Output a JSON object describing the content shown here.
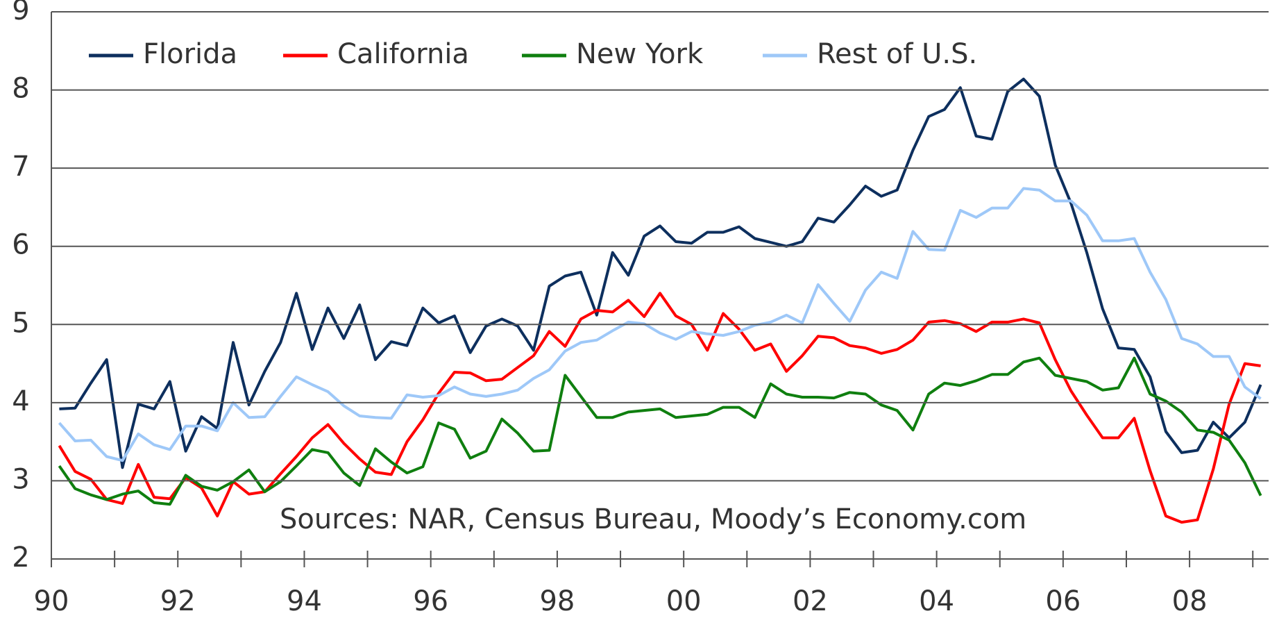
{
  "chart_data": {
    "type": "line",
    "annotation": "Sources: NAR, Census Bureau, Moody’s Economy.com",
    "legend": "top-left",
    "grid": true,
    "x": [
      1990.125,
      1990.375,
      1990.625,
      1990.875,
      1991.125,
      1991.375,
      1991.625,
      1991.875,
      1992.125,
      1992.375,
      1992.625,
      1992.875,
      1993.125,
      1993.375,
      1993.625,
      1993.875,
      1994.125,
      1994.375,
      1994.625,
      1994.875,
      1995.125,
      1995.375,
      1995.625,
      1995.875,
      1996.125,
      1996.375,
      1996.625,
      1996.875,
      1997.125,
      1997.375,
      1997.625,
      1997.875,
      1998.125,
      1998.375,
      1998.625,
      1998.875,
      1999.125,
      1999.375,
      1999.625,
      1999.875,
      2000.125,
      2000.375,
      2000.625,
      2000.875,
      2001.125,
      2001.375,
      2001.625,
      2001.875,
      2002.125,
      2002.375,
      2002.625,
      2002.875,
      2003.125,
      2003.375,
      2003.625,
      2003.875,
      2004.125,
      2004.375,
      2004.625,
      2004.875,
      2005.125,
      2005.375,
      2005.625,
      2005.875,
      2006.125,
      2006.375,
      2006.625,
      2006.875,
      2007.125,
      2007.375,
      2007.625,
      2007.875,
      2008.125,
      2008.375,
      2008.625,
      2008.875,
      2009.125
    ],
    "series": [
      {
        "name": "Florida",
        "color": "#0d2f5e",
        "values": [
          3.92,
          3.93,
          4.25,
          4.55,
          3.17,
          3.98,
          3.92,
          4.27,
          3.38,
          3.82,
          3.67,
          4.77,
          3.97,
          4.4,
          4.77,
          5.4,
          4.68,
          5.21,
          4.82,
          5.25,
          4.55,
          4.78,
          4.73,
          5.21,
          5.02,
          5.11,
          4.64,
          4.98,
          5.07,
          4.98,
          4.67,
          5.49,
          5.62,
          5.67,
          5.12,
          5.92,
          5.63,
          6.13,
          6.26,
          6.06,
          6.04,
          6.18,
          6.18,
          6.25,
          6.1,
          6.05,
          6.0,
          6.06,
          6.36,
          6.31,
          6.53,
          6.77,
          6.64,
          6.72,
          7.23,
          7.66,
          7.75,
          8.03,
          7.41,
          7.37,
          7.98,
          8.14,
          7.92,
          7.04,
          6.55,
          5.92,
          5.2,
          4.7,
          4.68,
          4.33,
          3.63,
          3.36,
          3.39,
          3.75,
          3.55,
          3.75,
          4.23
        ]
      },
      {
        "name": "California",
        "color": "#ff0000",
        "values": [
          3.45,
          3.12,
          3.02,
          2.76,
          2.71,
          3.21,
          2.79,
          2.77,
          3.04,
          2.91,
          2.55,
          2.99,
          2.83,
          2.86,
          3.09,
          3.31,
          3.55,
          3.72,
          3.48,
          3.28,
          3.11,
          3.08,
          3.5,
          3.78,
          4.12,
          4.39,
          4.38,
          4.28,
          4.3,
          4.45,
          4.6,
          4.91,
          4.72,
          5.07,
          5.18,
          5.16,
          5.31,
          5.1,
          5.4,
          5.11,
          5.0,
          4.67,
          5.14,
          4.94,
          4.67,
          4.75,
          4.4,
          4.6,
          4.85,
          4.83,
          4.73,
          4.7,
          4.63,
          4.68,
          4.8,
          5.03,
          5.05,
          5.01,
          4.91,
          5.03,
          5.03,
          5.07,
          5.02,
          4.55,
          4.15,
          3.84,
          3.55,
          3.55,
          3.8,
          3.13,
          2.55,
          2.47,
          2.5,
          3.15,
          3.98,
          4.5,
          4.47
        ]
      },
      {
        "name": "New York",
        "color": "#0f7f0f",
        "values": [
          3.19,
          2.9,
          2.82,
          2.76,
          2.83,
          2.87,
          2.72,
          2.7,
          3.07,
          2.93,
          2.88,
          2.99,
          3.14,
          2.86,
          2.99,
          3.19,
          3.4,
          3.36,
          3.1,
          2.94,
          3.41,
          3.24,
          3.1,
          3.18,
          3.74,
          3.66,
          3.29,
          3.38,
          3.79,
          3.61,
          3.38,
          3.39,
          4.35,
          4.08,
          3.81,
          3.81,
          3.88,
          3.9,
          3.92,
          3.81,
          3.83,
          3.85,
          3.94,
          3.94,
          3.81,
          4.24,
          4.11,
          4.07,
          4.07,
          4.06,
          4.13,
          4.11,
          3.97,
          3.9,
          3.65,
          4.11,
          4.25,
          4.22,
          4.28,
          4.36,
          4.36,
          4.52,
          4.57,
          4.35,
          4.31,
          4.27,
          4.16,
          4.19,
          4.57,
          4.11,
          4.02,
          3.88,
          3.65,
          3.62,
          3.52,
          3.23,
          2.81
        ]
      },
      {
        "name": "Rest of U.S.",
        "color": "#9ec8f8",
        "values": [
          3.74,
          3.51,
          3.52,
          3.31,
          3.26,
          3.6,
          3.46,
          3.4,
          3.7,
          3.7,
          3.64,
          4.0,
          3.81,
          3.82,
          4.08,
          4.33,
          4.23,
          4.14,
          3.96,
          3.83,
          3.81,
          3.8,
          4.1,
          4.07,
          4.09,
          4.2,
          4.11,
          4.08,
          4.11,
          4.16,
          4.31,
          4.42,
          4.66,
          4.77,
          4.8,
          4.92,
          5.03,
          5.01,
          4.89,
          4.81,
          4.91,
          4.88,
          4.86,
          4.91,
          4.99,
          5.03,
          5.12,
          5.02,
          5.51,
          5.27,
          5.04,
          5.44,
          5.67,
          5.59,
          6.19,
          5.96,
          5.95,
          6.46,
          6.37,
          6.49,
          6.49,
          6.74,
          6.72,
          6.58,
          6.58,
          6.4,
          6.07,
          6.07,
          6.1,
          5.67,
          5.32,
          4.82,
          4.75,
          4.59,
          4.59,
          4.2,
          4.05
        ]
      }
    ],
    "xlim": [
      1990,
      2009.25
    ],
    "xticks": [
      {
        "value": 1990,
        "label": "90"
      },
      {
        "value": 1992,
        "label": "92"
      },
      {
        "value": 1994,
        "label": "94"
      },
      {
        "value": 1996,
        "label": "96"
      },
      {
        "value": 1998,
        "label": "98"
      },
      {
        "value": 2000,
        "label": "00"
      },
      {
        "value": 2002,
        "label": "02"
      },
      {
        "value": 2004,
        "label": "04"
      },
      {
        "value": 2006,
        "label": "06"
      },
      {
        "value": 2008,
        "label": "08"
      }
    ],
    "xminor": [
      1991,
      1993,
      1995,
      1997,
      1999,
      2001,
      2003,
      2005,
      2007,
      2009
    ],
    "ylim": [
      2,
      9
    ],
    "yticks": [
      2,
      3,
      4,
      5,
      6,
      7,
      8,
      9
    ]
  }
}
